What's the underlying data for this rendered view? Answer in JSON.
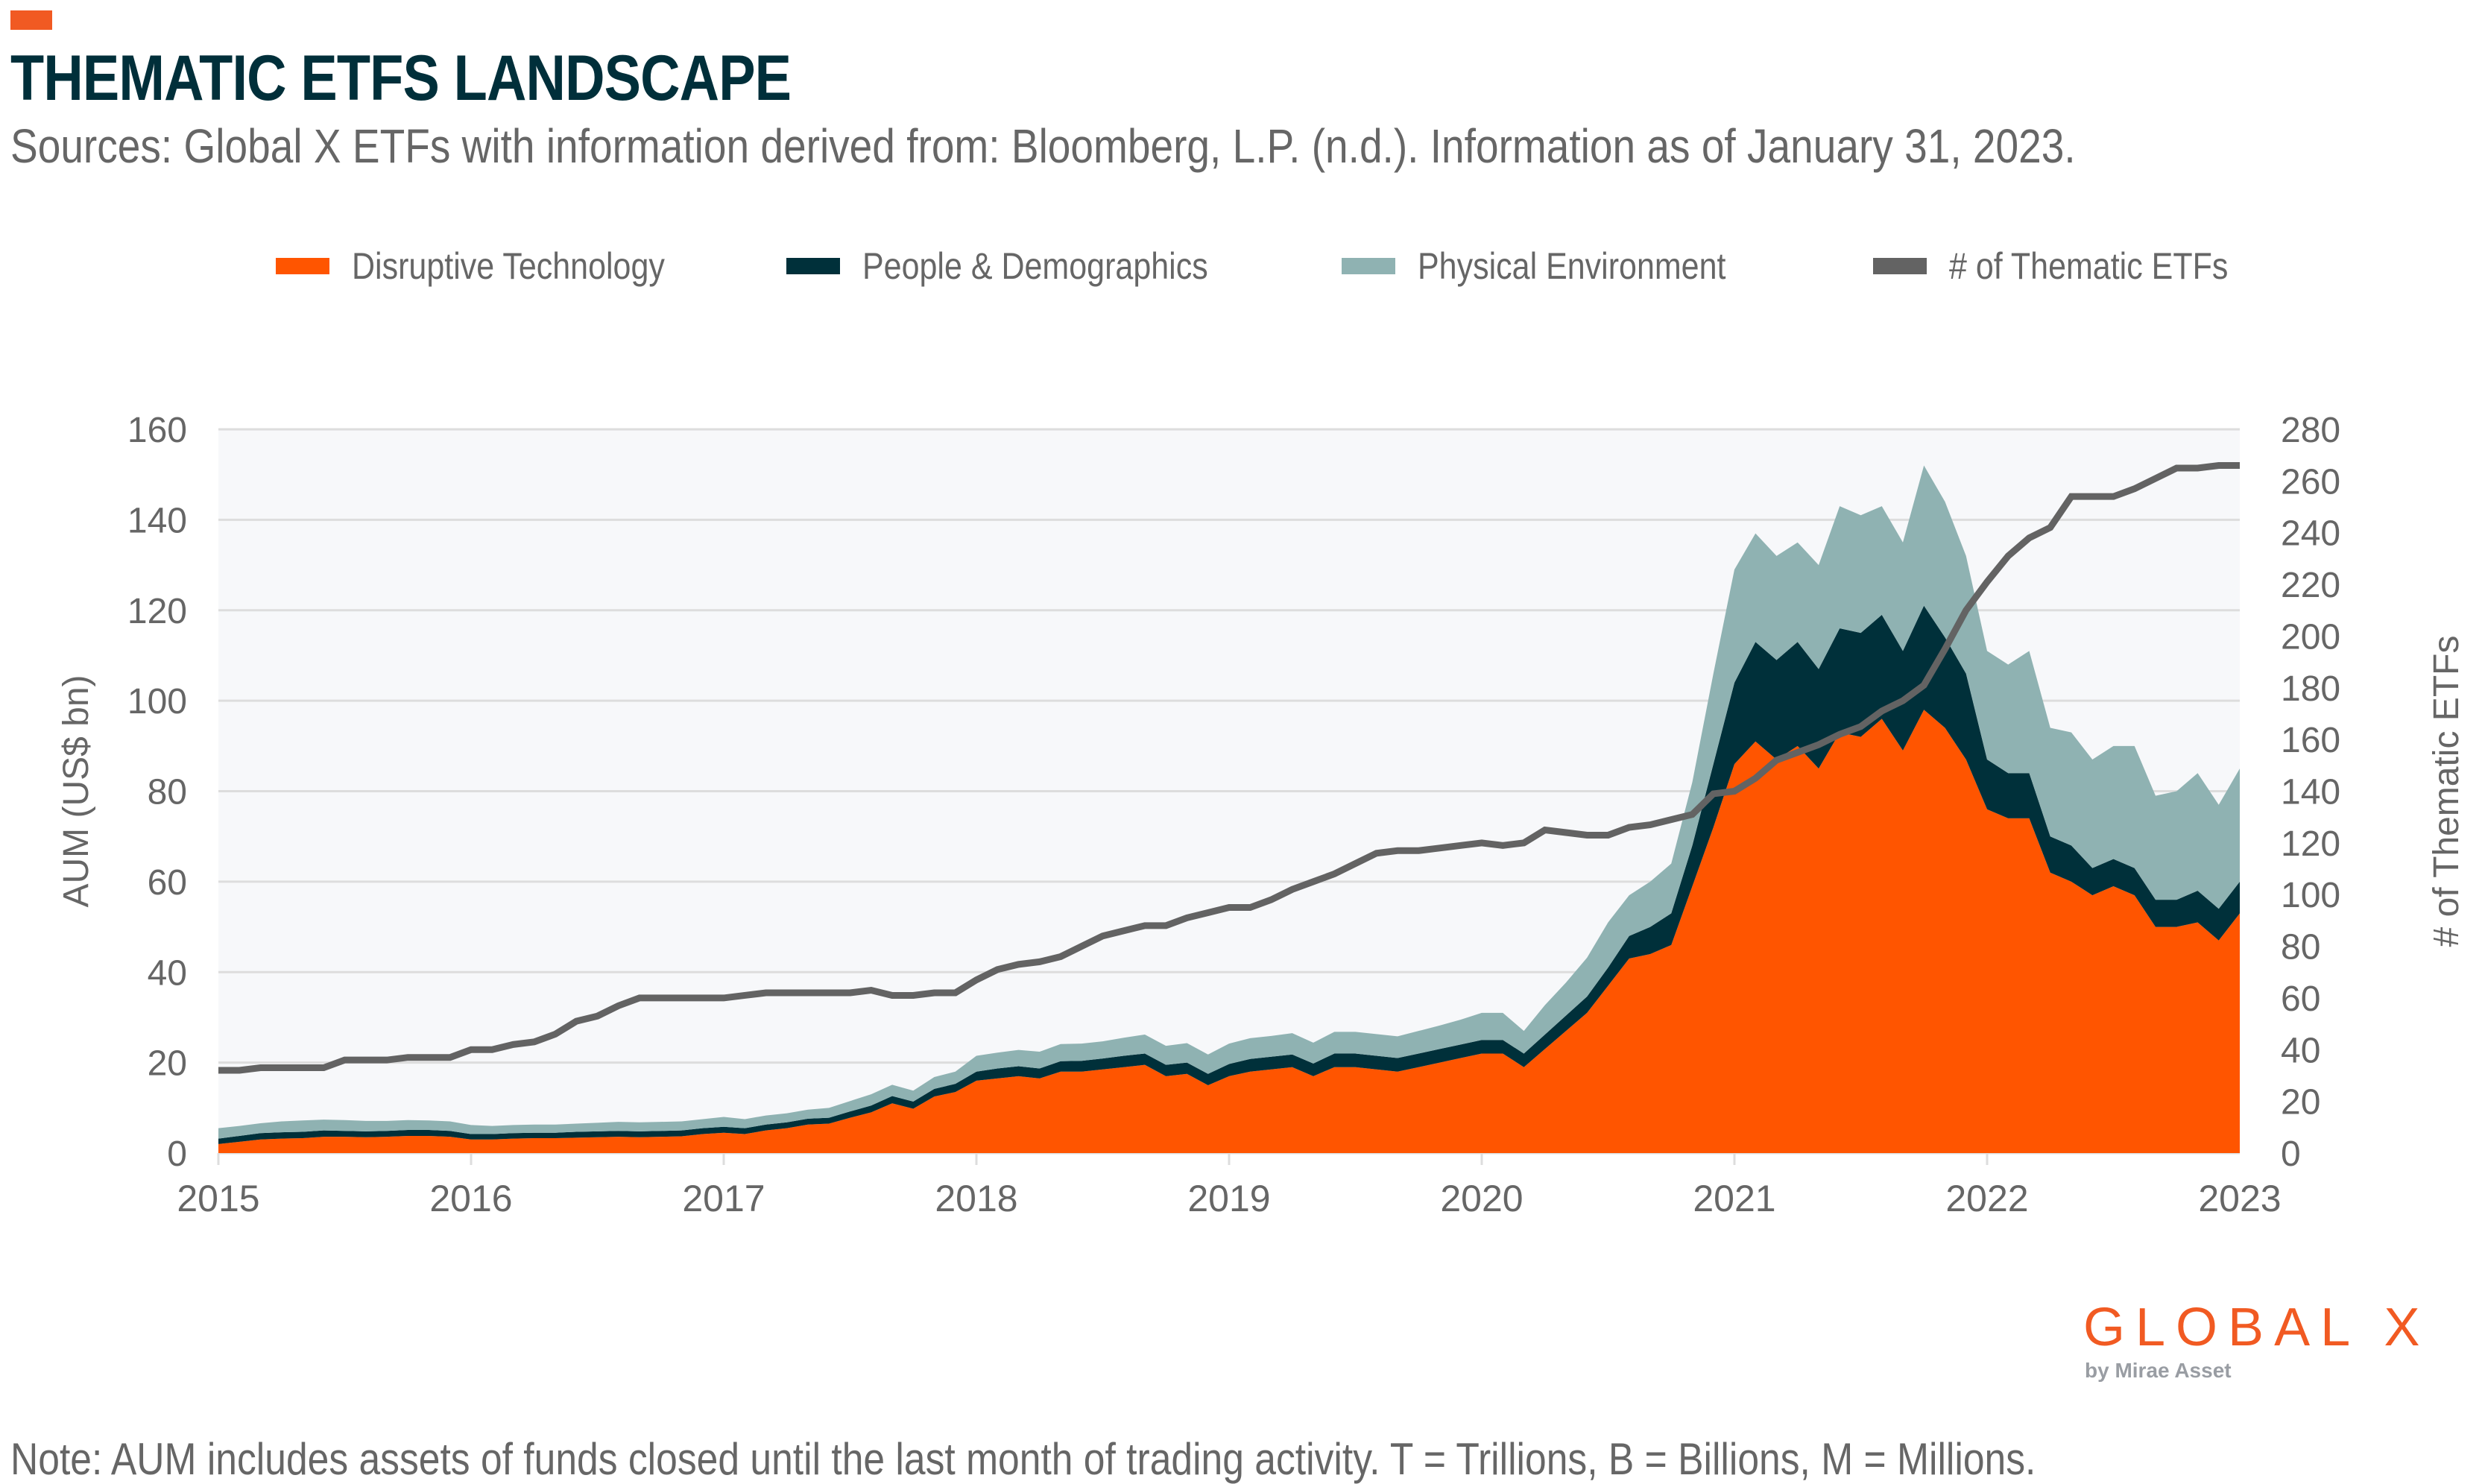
{
  "header": {
    "title": "THEMATIC ETFS LANDSCAPE",
    "subtitle": "Sources: Global X ETFs with information derived from: Bloomberg, L.P. (n.d.). Information as of January 31, 2023."
  },
  "note": "Note: AUM includes assets of funds closed until the last month of trading activity. T = Trillions, B = Billions, M = Millions.",
  "logo": {
    "name": "GLOBAL X",
    "tagline": "by Mirae Asset",
    "color": "#F15A22"
  },
  "colors": {
    "accent": "#F15A22",
    "disruptive": "#FF5500",
    "people": "#00303A",
    "physical": "#8FB2B2",
    "count_line": "#636363",
    "plot_bg": "#F7F8FA",
    "grid": "#DDDDDD",
    "text": "#666666"
  },
  "chart_data": {
    "type": "area",
    "stacked": true,
    "title": "THEMATIC ETFS LANDSCAPE",
    "xlabel": "",
    "ylabel": "AUM (US$ bn)",
    "y2label": "# of Thematic ETFs",
    "ylim": [
      0,
      160
    ],
    "y2lim": [
      0,
      280
    ],
    "yticks": [
      "0",
      "20",
      "40",
      "60",
      "80",
      "100",
      "120",
      "140",
      "160"
    ],
    "y2ticks": [
      "0",
      "20",
      "40",
      "60",
      "80",
      "100",
      "120",
      "140",
      "160",
      "180",
      "200",
      "220",
      "240",
      "260",
      "280"
    ],
    "xticks": [
      "2015",
      "2016",
      "2017",
      "2018",
      "2019",
      "2020",
      "2021",
      "2022",
      "2023"
    ],
    "x_frequency": "monthly",
    "x_start": "2015-01",
    "x_end": "2023-01",
    "grid": true,
    "legend_position": "top",
    "series": [
      {
        "name": "Disruptive Technology",
        "kind": "area",
        "axis": "left",
        "color": "#FF5500",
        "values": [
          2,
          2.5,
          3,
          3.2,
          3.3,
          3.6,
          3.6,
          3.5,
          3.6,
          3.8,
          3.8,
          3.6,
          3,
          3,
          3.2,
          3.3,
          3.3,
          3.4,
          3.5,
          3.6,
          3.5,
          3.6,
          3.7,
          4.2,
          4.5,
          4.2,
          5,
          5.5,
          6.3,
          6.5,
          7.8,
          9,
          11,
          9.8,
          12.5,
          13.5,
          16,
          16.5,
          17,
          16.5,
          18,
          18,
          18.5,
          19,
          19.5,
          17,
          17.5,
          15,
          17,
          18,
          18.5,
          19,
          17,
          19,
          19,
          18.5,
          18,
          19,
          20,
          21,
          22,
          22,
          19,
          23,
          27,
          31,
          37,
          43,
          44,
          46,
          59,
          72,
          86,
          91,
          87,
          90,
          85,
          93,
          92,
          96,
          89,
          98,
          94,
          87,
          76,
          74,
          74,
          62,
          60,
          57,
          59,
          57,
          50,
          50,
          51,
          47,
          53
        ]
      },
      {
        "name": "People & Demographics",
        "kind": "area",
        "axis": "left",
        "color": "#00303A",
        "values": [
          1.2,
          1.3,
          1.4,
          1.4,
          1.4,
          1.4,
          1.3,
          1.3,
          1.3,
          1.3,
          1.3,
          1.3,
          1.2,
          1.2,
          1.2,
          1.2,
          1.2,
          1.3,
          1.3,
          1.3,
          1.3,
          1.3,
          1.3,
          1.3,
          1.3,
          1.3,
          1.3,
          1.3,
          1.3,
          1.3,
          1.4,
          1.5,
          1.6,
          1.6,
          1.7,
          1.8,
          2,
          2.2,
          2.2,
          2.2,
          2.3,
          2.4,
          2.4,
          2.5,
          2.5,
          2.5,
          2.5,
          2.5,
          2.7,
          2.8,
          2.8,
          2.8,
          2.8,
          3,
          3,
          3,
          3,
          3,
          3,
          3,
          3,
          3,
          3,
          3.2,
          3.4,
          3.6,
          4,
          5,
          6,
          7,
          9,
          14,
          18,
          22,
          22,
          23,
          22,
          23,
          23,
          23,
          22,
          23,
          20,
          19,
          11,
          10,
          10,
          8,
          8,
          6,
          6,
          6,
          6,
          6,
          7,
          7,
          7
        ]
      },
      {
        "name": "Physical Environment",
        "kind": "area",
        "axis": "left",
        "color": "#8FB2B2",
        "values": [
          2.3,
          2.2,
          2.2,
          2.4,
          2.5,
          2.4,
          2.4,
          2.3,
          2.2,
          2.2,
          2.1,
          2.1,
          2,
          1.8,
          1.8,
          1.8,
          1.8,
          1.8,
          1.9,
          2,
          2,
          2,
          2,
          2,
          2.2,
          2,
          2,
          2,
          2,
          2.2,
          2.3,
          2.5,
          2.5,
          2.4,
          2.6,
          2.7,
          3.5,
          3.5,
          3.6,
          3.7,
          3.8,
          3.8,
          3.8,
          4,
          4.2,
          4.2,
          4.3,
          4.3,
          4.5,
          4.6,
          4.6,
          4.7,
          4.6,
          4.8,
          4.8,
          4.8,
          4.8,
          5,
          5.2,
          5.5,
          6,
          6,
          5,
          6.5,
          7.3,
          8.6,
          10,
          9,
          10,
          11,
          14,
          20,
          25,
          24,
          23,
          22,
          23,
          27,
          26,
          24,
          24,
          31,
          30,
          26,
          24,
          24,
          27,
          24,
          25,
          24,
          25,
          27,
          23,
          24,
          26,
          23,
          25
        ]
      },
      {
        "name": "# of Thematic ETFs",
        "kind": "line",
        "axis": "right",
        "color": "#636363",
        "values": [
          32,
          32,
          33,
          33,
          33,
          33,
          36,
          36,
          36,
          37,
          37,
          37,
          40,
          40,
          42,
          43,
          46,
          51,
          53,
          57,
          60,
          60,
          60,
          60,
          60,
          61,
          62,
          62,
          62,
          62,
          62,
          63,
          61,
          61,
          62,
          62,
          67,
          71,
          73,
          74,
          76,
          80,
          84,
          86,
          88,
          88,
          91,
          93,
          95,
          95,
          98,
          102,
          105,
          108,
          112,
          116,
          117,
          117,
          118,
          119,
          120,
          119,
          120,
          125,
          124,
          123,
          123,
          126,
          127,
          129,
          131,
          139,
          140,
          145,
          152,
          155,
          158,
          162,
          165,
          171,
          175,
          181,
          195,
          210,
          221,
          231,
          238,
          242,
          254,
          254,
          254,
          257,
          261,
          265,
          265,
          266,
          266
        ]
      }
    ]
  }
}
